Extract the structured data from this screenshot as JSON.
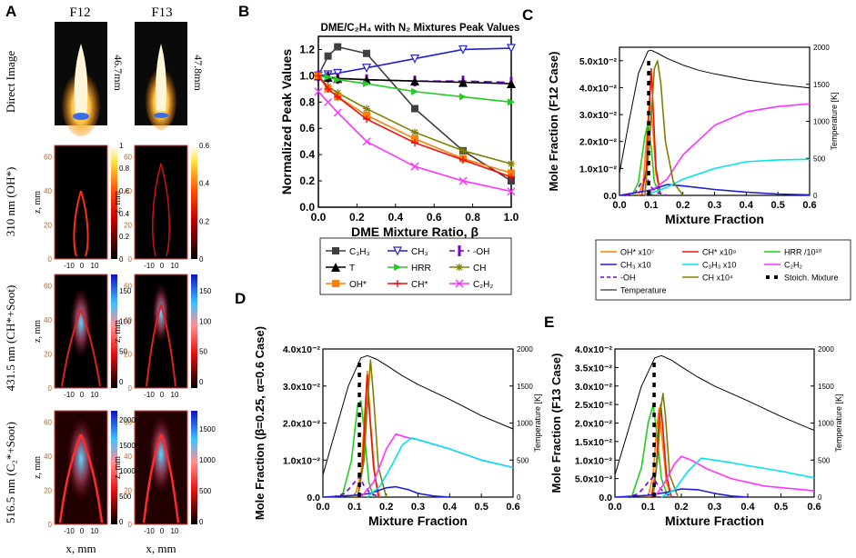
{
  "panel_a": {
    "letter": "A",
    "col1_label": "F12",
    "col2_label": "F13",
    "row1_label": "Direct Image",
    "row2_label": "310 nm (OH*)",
    "row3_label": "431.5 nm (CH*+Soot)",
    "row4_label": "516.5 nm (C₂*+Soot)",
    "flame_height_1": "46.7mm",
    "flame_height_2": "47.8mm",
    "ylabel": "z, mm",
    "xlabel": "x, mm",
    "y_ticks": [
      "0",
      "20",
      "40",
      "60"
    ],
    "x_ticks": [
      "-10",
      "0",
      "10"
    ],
    "cbar_r2_left": [
      "1",
      "0.8",
      "0.6",
      "0.4",
      "0.2",
      "0"
    ],
    "cbar_r2_right": [
      "0.6",
      "0.4",
      "0.2",
      "0"
    ],
    "cbar_r3": [
      "150",
      "100",
      "50",
      "0"
    ],
    "cbar_r4_left": [
      "2000",
      "1500",
      "1000",
      "500",
      "0"
    ],
    "cbar_r4_right": [
      "1500",
      "1000",
      "500",
      "0"
    ]
  },
  "colors": {
    "C3H3": "#404040",
    "CH3": "#1f1fd6",
    "OH": "#7a00cc",
    "T": "#000000",
    "HRR": "#22cc22",
    "CH": "#808000",
    "OHstar": "#ff8000",
    "CHstar": "#ee1111",
    "C2H2": "#ff33ff",
    "C3H3x10": "#00e5ee",
    "Temperature": "#000000",
    "Stoich": "#000000"
  },
  "chart_data": [
    {
      "panel": "B",
      "type": "line",
      "title": "DME/C₂H₄ with N₂ Mixtures Peak Values",
      "xlabel": "DME Mixture Ratio, β",
      "ylabel": "Normalized Peak Values",
      "xlim": [
        0,
        1
      ],
      "ylim": [
        0,
        1.3
      ],
      "x_ticks": [
        "0.0",
        "0.2",
        "0.4",
        "0.6",
        "0.8",
        "1.0"
      ],
      "y_ticks": [
        "0.0",
        "0.2",
        "0.4",
        "0.6",
        "0.8",
        "1.0",
        "1.2"
      ],
      "x": [
        0,
        0.05,
        0.1,
        0.25,
        0.5,
        0.75,
        1.0
      ],
      "series": [
        {
          "name": "C₃H₃",
          "key": "C3H3",
          "marker": "square",
          "values": [
            1.0,
            1.15,
            1.22,
            1.17,
            0.75,
            0.43,
            0.2
          ]
        },
        {
          "name": "CH₃",
          "key": "CH3",
          "marker": "tri-down",
          "values": [
            1.0,
            1.01,
            1.02,
            1.06,
            1.13,
            1.2,
            1.21
          ]
        },
        {
          "name": "-OH",
          "key": "OH",
          "marker": "bar",
          "values": [
            1.0,
            0.99,
            0.98,
            0.97,
            0.96,
            0.96,
            0.95
          ]
        },
        {
          "name": "T",
          "key": "T",
          "marker": "tri-up",
          "values": [
            1.0,
            0.99,
            0.98,
            0.97,
            0.96,
            0.95,
            0.94
          ]
        },
        {
          "name": "HRR",
          "key": "HRR",
          "marker": "tri-right",
          "values": [
            1.0,
            0.99,
            0.97,
            0.94,
            0.88,
            0.84,
            0.8
          ]
        },
        {
          "name": "CH",
          "key": "CH",
          "marker": "star",
          "values": [
            1.0,
            0.92,
            0.87,
            0.75,
            0.57,
            0.43,
            0.33
          ]
        },
        {
          "name": "OH*",
          "key": "OHstar",
          "marker": "square",
          "values": [
            1.0,
            0.9,
            0.84,
            0.7,
            0.52,
            0.37,
            0.26
          ]
        },
        {
          "name": "CH*",
          "key": "CHstar",
          "marker": "plus",
          "values": [
            1.0,
            0.9,
            0.84,
            0.67,
            0.49,
            0.36,
            0.23
          ]
        },
        {
          "name": "C₂H₂",
          "key": "C2H2",
          "marker": "x",
          "values": [
            0.88,
            0.8,
            0.72,
            0.5,
            0.31,
            0.2,
            0.12
          ]
        }
      ]
    },
    {
      "panel": "C",
      "type": "line",
      "ylabel": "Mole Fraction (F12 Case)",
      "ylabel_right": "Temperature [K]",
      "xlabel": "Mixture Fraction",
      "xlim": [
        0,
        0.6
      ],
      "ylim": [
        0,
        0.055
      ],
      "y2lim": [
        0,
        2000
      ],
      "x_ticks": [
        "0.0",
        "0.1",
        "0.2",
        "0.3",
        "0.4",
        "0.5",
        "0.6"
      ],
      "y_ticks": [
        "0.0",
        "1.0x10⁻²",
        "2.0x10⁻²",
        "3.0x10⁻²",
        "4.0x10⁻²",
        "5.0x10⁻²"
      ],
      "y2_ticks": [
        "0",
        "500",
        "1000",
        "1500",
        "2000"
      ],
      "stoich_x": 0.092,
      "series": [
        {
          "key": "Temperature",
          "axis": "right",
          "x": [
            0,
            0.03,
            0.06,
            0.09,
            0.1,
            0.12,
            0.15,
            0.2,
            0.25,
            0.3,
            0.4,
            0.5,
            0.6
          ],
          "values": [
            300,
            1000,
            1650,
            1950,
            1960,
            1920,
            1850,
            1760,
            1690,
            1640,
            1560,
            1500,
            1450
          ]
        },
        {
          "key": "OHstar",
          "x": [
            0.06,
            0.075,
            0.085,
            0.095,
            0.105,
            0.115,
            0.13
          ],
          "values": [
            0,
            0.005,
            0.02,
            0.036,
            0.025,
            0.008,
            0
          ]
        },
        {
          "key": "CHstar",
          "x": [
            0.07,
            0.085,
            0.095,
            0.1,
            0.105,
            0.115,
            0.13
          ],
          "values": [
            0,
            0.01,
            0.035,
            0.047,
            0.035,
            0.01,
            0
          ]
        },
        {
          "key": "HRR",
          "x": [
            0.04,
            0.06,
            0.08,
            0.09,
            0.1,
            0.11,
            0.13
          ],
          "values": [
            0,
            0.005,
            0.022,
            0.027,
            0.018,
            0.005,
            0
          ]
        },
        {
          "key": "CH3",
          "x": [
            0,
            0.1,
            0.15,
            0.2,
            0.3,
            0.4,
            0.5,
            0.6
          ],
          "values": [
            0,
            0.002,
            0.004,
            0.0035,
            0.0022,
            0.0012,
            0.0005,
            0.0002
          ]
        },
        {
          "key": "C3H3x10",
          "x": [
            0.08,
            0.15,
            0.2,
            0.3,
            0.4,
            0.5,
            0.6
          ],
          "values": [
            0,
            0.003,
            0.006,
            0.01,
            0.0125,
            0.0132,
            0.0134
          ]
        },
        {
          "key": "C2H2",
          "x": [
            0.08,
            0.15,
            0.2,
            0.3,
            0.4,
            0.5,
            0.6
          ],
          "values": [
            0,
            0.006,
            0.015,
            0.026,
            0.031,
            0.033,
            0.034
          ]
        },
        {
          "key": "OH",
          "dashed": true,
          "x": [
            0.02,
            0.05,
            0.07,
            0.085,
            0.1,
            0.12,
            0.15
          ],
          "values": [
            0,
            0.001,
            0.005,
            0.007,
            0.003,
            0.001,
            0
          ]
        },
        {
          "key": "CH",
          "x": [
            0.08,
            0.095,
            0.11,
            0.12,
            0.13,
            0.145,
            0.17,
            0.2
          ],
          "values": [
            0,
            0.02,
            0.047,
            0.05,
            0.042,
            0.02,
            0.005,
            0
          ]
        }
      ],
      "legend": [
        {
          "key": "OHstar",
          "label": "OH* x10⁷"
        },
        {
          "key": "CHstar",
          "label": "CH* x10⁹"
        },
        {
          "key": "HRR",
          "label": "HRR /10¹⁰"
        },
        {
          "key": "CH3",
          "label": "CH₃ x10"
        },
        {
          "key": "C3H3x10",
          "label": "C₃H₃ x10"
        },
        {
          "key": "C2H2",
          "label": "C₂H₂"
        },
        {
          "key": "OH",
          "label": "-OH",
          "dashed": true
        },
        {
          "key": "CH",
          "label": "CH x10⁴"
        },
        {
          "key": "Stoich",
          "label": "Stoich. Mixture",
          "dotted": true
        },
        {
          "key": "Temperature",
          "label": "Temperature"
        }
      ]
    },
    {
      "panel": "D",
      "type": "line",
      "ylabel": "Mole Fraction (β=0.25, α=0.6 Case)",
      "ylabel_right": "Temperature [K]",
      "xlabel": "Mixture Fraction",
      "xlim": [
        0,
        0.6
      ],
      "ylim": [
        0,
        0.04
      ],
      "y2lim": [
        0,
        2000
      ],
      "x_ticks": [
        "0.0",
        "0.1",
        "0.2",
        "0.3",
        "0.4",
        "0.5",
        "0.6"
      ],
      "y_ticks": [
        "0.0",
        "1.0x10⁻²",
        "2.0x10⁻²",
        "3.0x10⁻²",
        "4.0x10⁻²"
      ],
      "y2_ticks": [
        "0",
        "500",
        "1000",
        "1500",
        "2000"
      ],
      "stoich_x": 0.115,
      "series": [
        {
          "key": "Temperature",
          "axis": "right",
          "x": [
            0,
            0.04,
            0.08,
            0.12,
            0.14,
            0.17,
            0.2,
            0.25,
            0.3,
            0.4,
            0.5,
            0.6
          ],
          "values": [
            300,
            900,
            1500,
            1880,
            1910,
            1860,
            1780,
            1640,
            1520,
            1320,
            1100,
            920
          ]
        },
        {
          "key": "HRR",
          "x": [
            0.06,
            0.09,
            0.11,
            0.12,
            0.13,
            0.145,
            0.16
          ],
          "values": [
            0,
            0.01,
            0.025,
            0.026,
            0.018,
            0.004,
            0
          ]
        },
        {
          "key": "OHstar",
          "x": [
            0.1,
            0.12,
            0.13,
            0.14,
            0.15,
            0.165,
            0.18
          ],
          "values": [
            0,
            0.006,
            0.02,
            0.034,
            0.02,
            0.005,
            0
          ]
        },
        {
          "key": "CHstar",
          "x": [
            0.11,
            0.125,
            0.135,
            0.14,
            0.145,
            0.16,
            0.175
          ],
          "values": [
            0,
            0.008,
            0.025,
            0.033,
            0.025,
            0.008,
            0
          ]
        },
        {
          "key": "CH",
          "x": [
            0.11,
            0.13,
            0.14,
            0.15,
            0.16,
            0.175,
            0.2
          ],
          "values": [
            0,
            0.01,
            0.025,
            0.037,
            0.027,
            0.008,
            0
          ]
        },
        {
          "key": "OH",
          "dashed": true,
          "x": [
            0.03,
            0.07,
            0.1,
            0.115,
            0.13,
            0.15,
            0.18
          ],
          "values": [
            0,
            0.001,
            0.004,
            0.0055,
            0.003,
            0.001,
            0
          ]
        },
        {
          "key": "CH3",
          "x": [
            0,
            0.1,
            0.15,
            0.2,
            0.23,
            0.27,
            0.3,
            0.35,
            0.4
          ],
          "values": [
            0,
            0.0005,
            0.001,
            0.0025,
            0.0028,
            0.002,
            0.001,
            0.0003,
            0
          ]
        },
        {
          "key": "C2H2",
          "x": [
            0.12,
            0.16,
            0.2,
            0.23,
            0.27,
            0.3,
            0.4,
            0.5,
            0.6
          ],
          "values": [
            0,
            0.004,
            0.013,
            0.017,
            0.016,
            0.0155,
            0.013,
            0.01,
            0.008
          ]
        },
        {
          "key": "C3H3x10",
          "x": [
            0.14,
            0.18,
            0.22,
            0.25,
            0.28,
            0.3,
            0.4,
            0.5,
            0.6
          ],
          "values": [
            0,
            0.003,
            0.009,
            0.014,
            0.016,
            0.0155,
            0.013,
            0.01,
            0.008
          ]
        }
      ]
    },
    {
      "panel": "E",
      "type": "line",
      "ylabel": "Mole Fraction (F13 Case)",
      "ylabel_right": "Temperature [K]",
      "xlabel": "Mixture Fraction",
      "xlim": [
        0,
        0.6
      ],
      "ylim": [
        0,
        0.04
      ],
      "y2lim": [
        0,
        2000
      ],
      "x_ticks": [
        "0.0",
        "0.1",
        "0.2",
        "0.3",
        "0.4",
        "0.5",
        "0.6"
      ],
      "y_ticks": [
        "0.0",
        "5.0x10⁻³",
        "1.0x10⁻²",
        "1.5x10⁻²",
        "2.0x10⁻²",
        "2.5x10⁻²",
        "3.0x10⁻²",
        "3.5x10⁻²",
        "4.0x10⁻²"
      ],
      "y2_ticks": [
        "0",
        "500",
        "1000",
        "1500",
        "2000"
      ],
      "stoich_x": 0.118,
      "series": [
        {
          "key": "Temperature",
          "axis": "right",
          "x": [
            0,
            0.04,
            0.08,
            0.12,
            0.14,
            0.17,
            0.2,
            0.25,
            0.3,
            0.4,
            0.5,
            0.6
          ],
          "values": [
            300,
            900,
            1500,
            1880,
            1910,
            1850,
            1760,
            1620,
            1500,
            1300,
            1090,
            900
          ]
        },
        {
          "key": "HRR",
          "x": [
            0.05,
            0.08,
            0.1,
            0.115,
            0.125,
            0.14,
            0.16
          ],
          "values": [
            0,
            0.008,
            0.02,
            0.025,
            0.018,
            0.005,
            0
          ]
        },
        {
          "key": "OHstar",
          "x": [
            0.1,
            0.115,
            0.125,
            0.133,
            0.142,
            0.155,
            0.17
          ],
          "values": [
            0,
            0.006,
            0.018,
            0.024,
            0.016,
            0.004,
            0
          ]
        },
        {
          "key": "CHstar",
          "x": [
            0.11,
            0.125,
            0.132,
            0.138,
            0.145,
            0.155,
            0.17
          ],
          "values": [
            0,
            0.008,
            0.02,
            0.025,
            0.018,
            0.006,
            0
          ]
        },
        {
          "key": "CH",
          "x": [
            0.115,
            0.13,
            0.138,
            0.145,
            0.152,
            0.165,
            0.19
          ],
          "values": [
            0,
            0.012,
            0.024,
            0.028,
            0.022,
            0.006,
            0
          ]
        },
        {
          "key": "OH",
          "dashed": true,
          "x": [
            0.03,
            0.07,
            0.1,
            0.115,
            0.13,
            0.15,
            0.18
          ],
          "values": [
            0,
            0.0008,
            0.004,
            0.0055,
            0.003,
            0.001,
            0
          ]
        },
        {
          "key": "CH3",
          "x": [
            0,
            0.1,
            0.15,
            0.2,
            0.25,
            0.3,
            0.35,
            0.4
          ],
          "values": [
            0,
            0.0005,
            0.0012,
            0.0022,
            0.002,
            0.001,
            0.0003,
            0
          ]
        },
        {
          "key": "C2H2",
          "x": [
            0.12,
            0.15,
            0.18,
            0.2,
            0.23,
            0.28,
            0.35,
            0.45,
            0.6
          ],
          "values": [
            0,
            0.004,
            0.009,
            0.011,
            0.01,
            0.0075,
            0.005,
            0.003,
            0.0017
          ]
        },
        {
          "key": "C3H3x10",
          "x": [
            0.14,
            0.18,
            0.22,
            0.26,
            0.3,
            0.35,
            0.4,
            0.5,
            0.6
          ],
          "values": [
            0,
            0.002,
            0.007,
            0.0105,
            0.01,
            0.0093,
            0.0085,
            0.007,
            0.0052
          ]
        }
      ]
    }
  ]
}
